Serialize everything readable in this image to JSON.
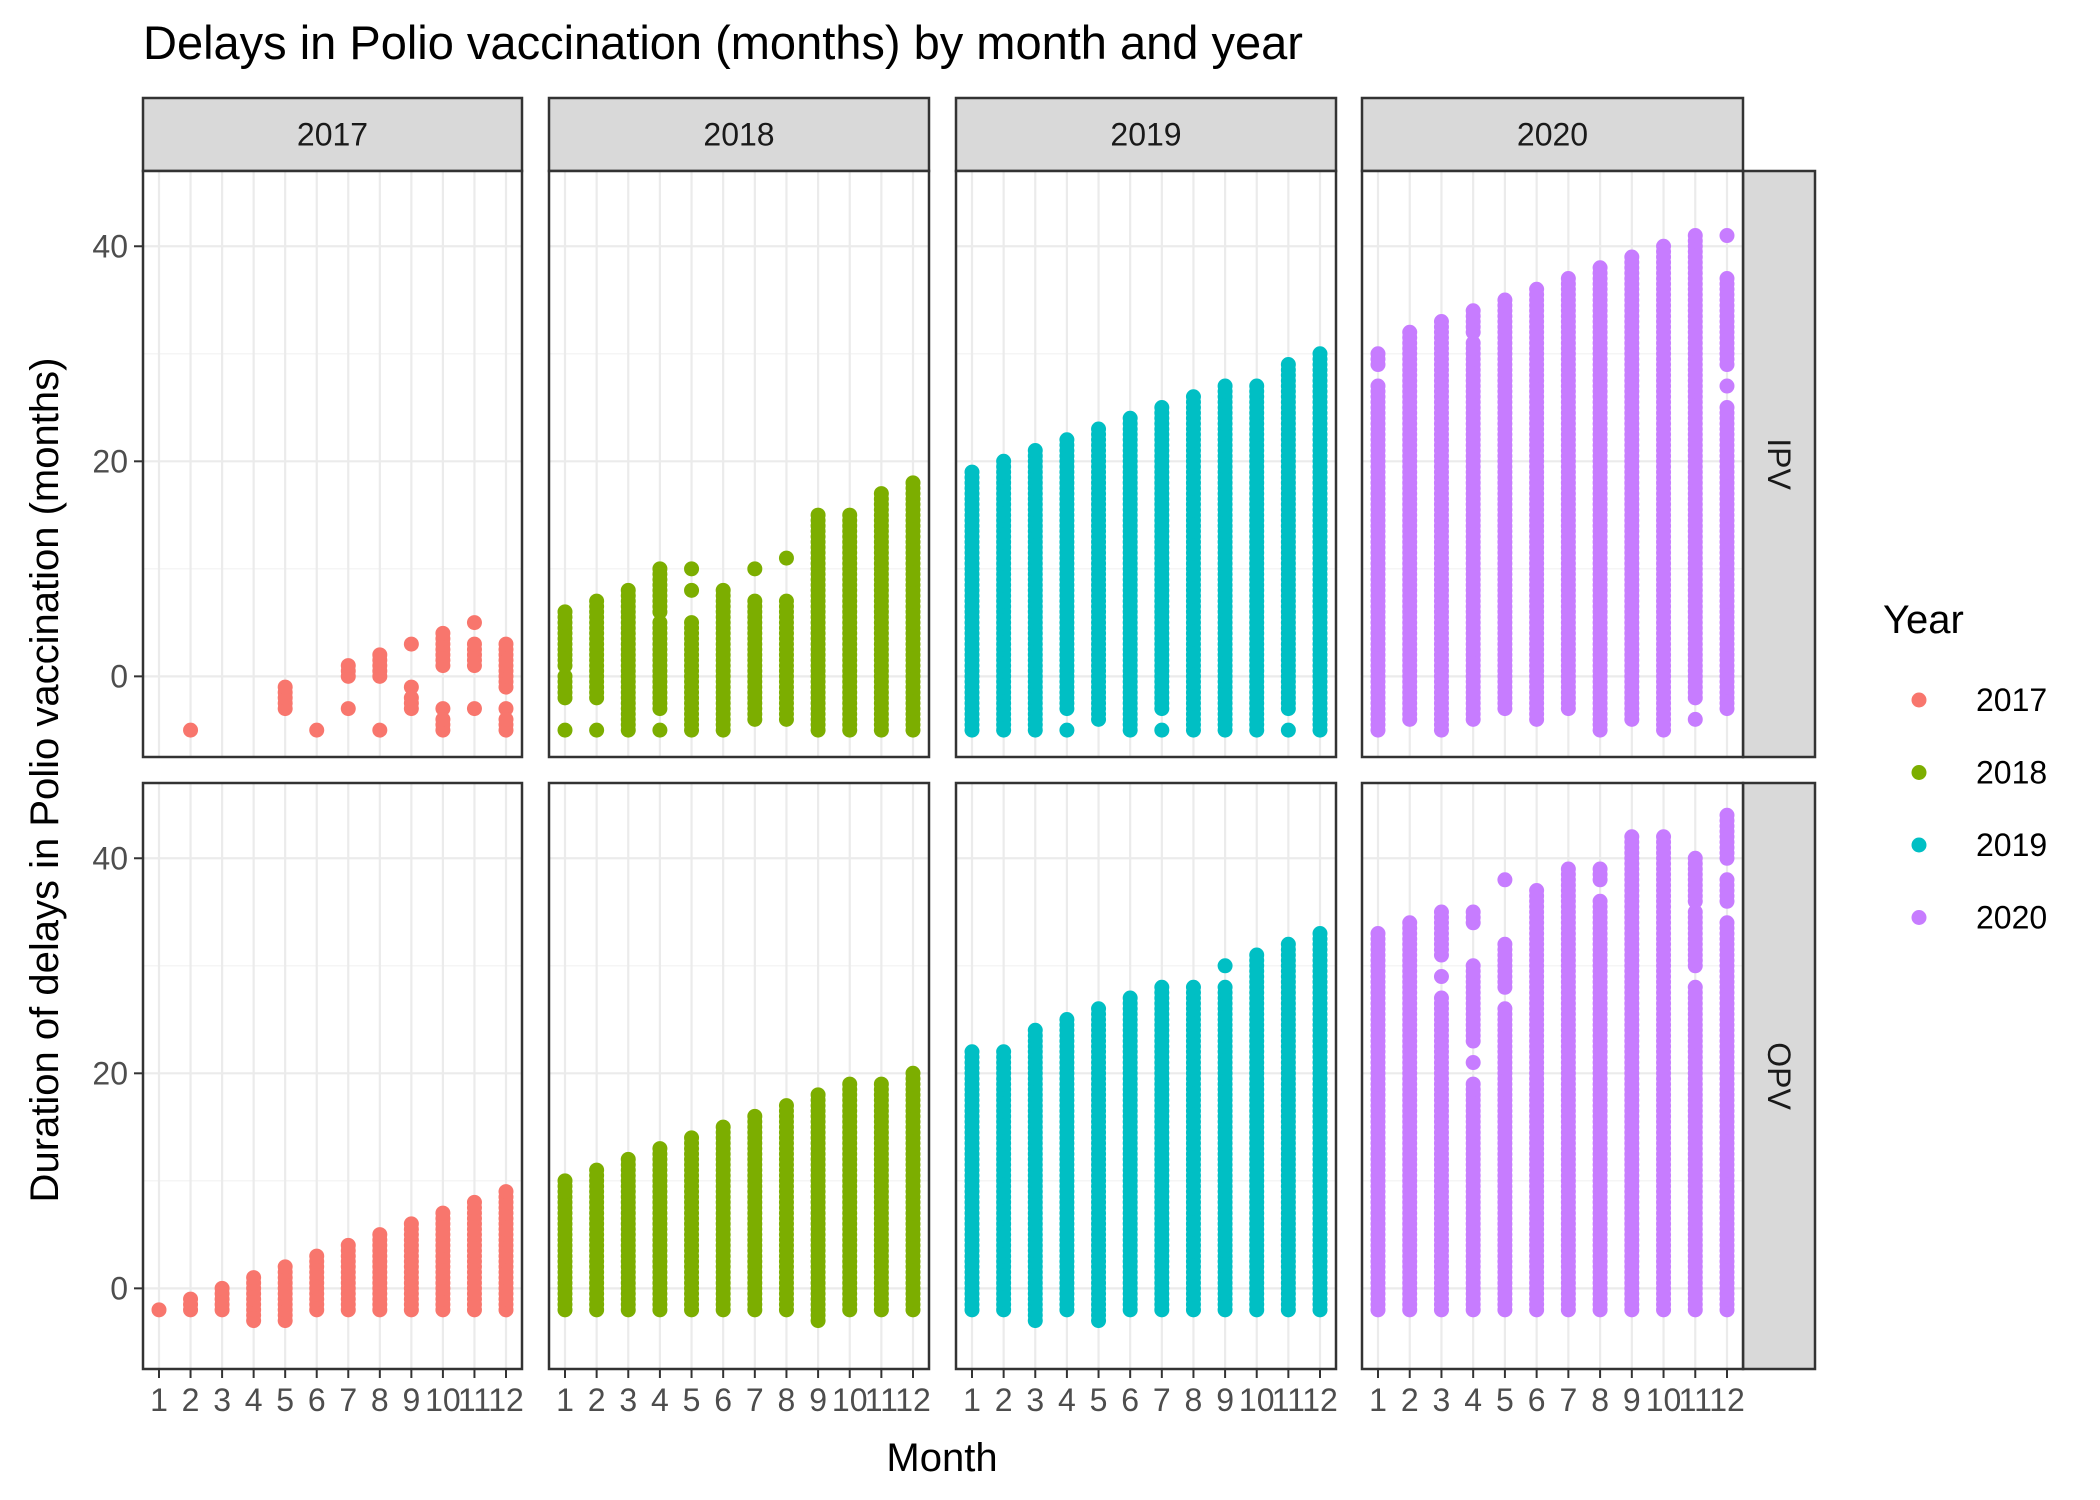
{
  "chart_data": {
    "type": "scatter",
    "title": "Delays in Polio vaccination (months) by month and year",
    "xlabel": "Month",
    "ylabel": "Duration of delays in Polio vaccination (months)",
    "x_ticks": [
      "1",
      "2",
      "3",
      "4",
      "5",
      "6",
      "7",
      "8",
      "9",
      "10",
      "11",
      "12"
    ],
    "y_ticks": [
      "0",
      "20",
      "40"
    ],
    "ylim": [
      -7.5,
      47
    ],
    "facet_columns": [
      "2017",
      "2018",
      "2019",
      "2020"
    ],
    "facet_rows": [
      "IPV",
      "OPV"
    ],
    "legend": {
      "title": "Year",
      "position": "right",
      "entries": [
        {
          "label": "2017",
          "color": "#F8766D"
        },
        {
          "label": "2018",
          "color": "#7CAE00"
        },
        {
          "label": "2019",
          "color": "#00BFC4"
        },
        {
          "label": "2020",
          "color": "#C77CFF"
        }
      ]
    },
    "panels": [
      {
        "row": "IPV",
        "col": "2017",
        "color": "#F8766D",
        "columns": [
          {
            "month": 2,
            "values": [
              -5
            ]
          },
          {
            "month": 5,
            "ranges": [
              [
                -3,
                -1
              ]
            ]
          },
          {
            "month": 6,
            "values": [
              -5
            ]
          },
          {
            "month": 7,
            "values": [
              -3
            ],
            "ranges": [
              [
                0,
                1
              ]
            ]
          },
          {
            "month": 8,
            "values": [
              -5
            ],
            "ranges": [
              [
                0,
                2
              ]
            ]
          },
          {
            "month": 9,
            "values": [
              -1,
              3
            ],
            "ranges": [
              [
                -3,
                -2
              ]
            ]
          },
          {
            "month": 10,
            "values": [
              -3
            ],
            "ranges": [
              [
                -5,
                -4
              ],
              [
                1,
                4
              ]
            ]
          },
          {
            "month": 11,
            "values": [
              -3,
              5
            ],
            "ranges": [
              [
                1,
                3
              ]
            ]
          },
          {
            "month": 12,
            "values": [
              -3
            ],
            "ranges": [
              [
                -5,
                -4
              ],
              [
                -1,
                3
              ]
            ]
          }
        ]
      },
      {
        "row": "IPV",
        "col": "2018",
        "color": "#7CAE00",
        "columns": [
          {
            "month": 1,
            "values": [
              -5
            ],
            "ranges": [
              [
                -2,
                0
              ],
              [
                1,
                6
              ]
            ]
          },
          {
            "month": 2,
            "values": [
              -5
            ],
            "ranges": [
              [
                -2,
                7
              ]
            ]
          },
          {
            "month": 3,
            "ranges": [
              [
                -5,
                8
              ]
            ]
          },
          {
            "month": 4,
            "values": [
              -5
            ],
            "ranges": [
              [
                -3,
                5
              ],
              [
                6,
                10
              ]
            ]
          },
          {
            "month": 5,
            "values": [
              8,
              10
            ],
            "ranges": [
              [
                -5,
                5
              ]
            ]
          },
          {
            "month": 6,
            "ranges": [
              [
                -5,
                8
              ]
            ]
          },
          {
            "month": 7,
            "values": [
              10
            ],
            "ranges": [
              [
                -4,
                7
              ]
            ]
          },
          {
            "month": 8,
            "values": [
              11
            ],
            "ranges": [
              [
                -4,
                7
              ]
            ]
          },
          {
            "month": 9,
            "ranges": [
              [
                -5,
                15
              ]
            ]
          },
          {
            "month": 10,
            "ranges": [
              [
                -5,
                15
              ]
            ]
          },
          {
            "month": 11,
            "ranges": [
              [
                -5,
                17
              ]
            ]
          },
          {
            "month": 12,
            "ranges": [
              [
                -5,
                18
              ]
            ]
          }
        ]
      },
      {
        "row": "IPV",
        "col": "2019",
        "color": "#00BFC4",
        "columns": [
          {
            "month": 1,
            "ranges": [
              [
                -5,
                19
              ]
            ]
          },
          {
            "month": 2,
            "ranges": [
              [
                -5,
                20
              ]
            ]
          },
          {
            "month": 3,
            "ranges": [
              [
                -5,
                21
              ]
            ]
          },
          {
            "month": 4,
            "values": [
              -5
            ],
            "ranges": [
              [
                -3,
                22
              ]
            ]
          },
          {
            "month": 5,
            "ranges": [
              [
                -4,
                23
              ]
            ]
          },
          {
            "month": 6,
            "ranges": [
              [
                -5,
                24
              ]
            ]
          },
          {
            "month": 7,
            "values": [
              -5
            ],
            "ranges": [
              [
                -3,
                25
              ]
            ]
          },
          {
            "month": 8,
            "ranges": [
              [
                -5,
                26
              ]
            ]
          },
          {
            "month": 9,
            "ranges": [
              [
                -5,
                27
              ]
            ]
          },
          {
            "month": 10,
            "ranges": [
              [
                -5,
                27
              ]
            ]
          },
          {
            "month": 11,
            "values": [
              -5
            ],
            "ranges": [
              [
                -3,
                29
              ]
            ]
          },
          {
            "month": 12,
            "ranges": [
              [
                -5,
                30
              ]
            ]
          }
        ]
      },
      {
        "row": "IPV",
        "col": "2020",
        "color": "#C77CFF",
        "columns": [
          {
            "month": 1,
            "ranges": [
              [
                -5,
                27
              ],
              [
                29,
                30
              ]
            ]
          },
          {
            "month": 2,
            "ranges": [
              [
                -4,
                32
              ]
            ]
          },
          {
            "month": 3,
            "ranges": [
              [
                -5,
                33
              ]
            ]
          },
          {
            "month": 4,
            "ranges": [
              [
                -4,
                31
              ],
              [
                32,
                34
              ]
            ]
          },
          {
            "month": 5,
            "ranges": [
              [
                -3,
                35
              ]
            ]
          },
          {
            "month": 6,
            "ranges": [
              [
                -4,
                36
              ]
            ]
          },
          {
            "month": 7,
            "ranges": [
              [
                -3,
                37
              ]
            ]
          },
          {
            "month": 8,
            "ranges": [
              [
                -5,
                38
              ]
            ]
          },
          {
            "month": 9,
            "ranges": [
              [
                -4,
                39
              ]
            ]
          },
          {
            "month": 10,
            "ranges": [
              [
                -5,
                40
              ]
            ]
          },
          {
            "month": 11,
            "values": [
              -4
            ],
            "ranges": [
              [
                -2,
                41
              ]
            ]
          },
          {
            "month": 12,
            "values": [
              27,
              41
            ],
            "ranges": [
              [
                -3,
                25
              ],
              [
                29,
                37
              ]
            ]
          }
        ]
      },
      {
        "row": "OPV",
        "col": "2017",
        "color": "#F8766D",
        "columns": [
          {
            "month": 1,
            "values": [
              -2
            ]
          },
          {
            "month": 2,
            "ranges": [
              [
                -2,
                -1
              ]
            ]
          },
          {
            "month": 3,
            "ranges": [
              [
                -2,
                0
              ]
            ]
          },
          {
            "month": 4,
            "ranges": [
              [
                -3,
                1
              ]
            ]
          },
          {
            "month": 5,
            "ranges": [
              [
                -3,
                2
              ]
            ]
          },
          {
            "month": 6,
            "ranges": [
              [
                -2,
                3
              ]
            ]
          },
          {
            "month": 7,
            "ranges": [
              [
                -2,
                4
              ]
            ]
          },
          {
            "month": 8,
            "ranges": [
              [
                -2,
                5
              ]
            ]
          },
          {
            "month": 9,
            "ranges": [
              [
                -2,
                6
              ]
            ]
          },
          {
            "month": 10,
            "ranges": [
              [
                -2,
                7
              ]
            ]
          },
          {
            "month": 11,
            "ranges": [
              [
                -2,
                8
              ]
            ]
          },
          {
            "month": 12,
            "ranges": [
              [
                -2,
                9
              ]
            ]
          }
        ]
      },
      {
        "row": "OPV",
        "col": "2018",
        "color": "#7CAE00",
        "columns": [
          {
            "month": 1,
            "ranges": [
              [
                -2,
                10
              ]
            ]
          },
          {
            "month": 2,
            "ranges": [
              [
                -2,
                11
              ]
            ]
          },
          {
            "month": 3,
            "ranges": [
              [
                -2,
                12
              ]
            ]
          },
          {
            "month": 4,
            "ranges": [
              [
                -2,
                13
              ]
            ]
          },
          {
            "month": 5,
            "ranges": [
              [
                -2,
                14
              ]
            ]
          },
          {
            "month": 6,
            "ranges": [
              [
                -2,
                15
              ]
            ]
          },
          {
            "month": 7,
            "ranges": [
              [
                -2,
                16
              ]
            ]
          },
          {
            "month": 8,
            "ranges": [
              [
                -2,
                17
              ]
            ]
          },
          {
            "month": 9,
            "ranges": [
              [
                -3,
                18
              ]
            ]
          },
          {
            "month": 10,
            "ranges": [
              [
                -2,
                19
              ]
            ]
          },
          {
            "month": 11,
            "ranges": [
              [
                -2,
                19
              ]
            ]
          },
          {
            "month": 12,
            "ranges": [
              [
                -2,
                20
              ]
            ]
          }
        ]
      },
      {
        "row": "OPV",
        "col": "2019",
        "color": "#00BFC4",
        "columns": [
          {
            "month": 1,
            "ranges": [
              [
                -2,
                22
              ]
            ]
          },
          {
            "month": 2,
            "ranges": [
              [
                -2,
                22
              ]
            ]
          },
          {
            "month": 3,
            "ranges": [
              [
                -3,
                24
              ]
            ]
          },
          {
            "month": 4,
            "ranges": [
              [
                -2,
                25
              ]
            ]
          },
          {
            "month": 5,
            "ranges": [
              [
                -3,
                26
              ]
            ]
          },
          {
            "month": 6,
            "ranges": [
              [
                -2,
                27
              ]
            ]
          },
          {
            "month": 7,
            "ranges": [
              [
                -2,
                28
              ]
            ]
          },
          {
            "month": 8,
            "ranges": [
              [
                -2,
                28
              ]
            ]
          },
          {
            "month": 9,
            "values": [
              30
            ],
            "ranges": [
              [
                -2,
                28
              ]
            ]
          },
          {
            "month": 10,
            "ranges": [
              [
                -2,
                31
              ]
            ]
          },
          {
            "month": 11,
            "ranges": [
              [
                -2,
                32
              ]
            ]
          },
          {
            "month": 12,
            "ranges": [
              [
                -2,
                33
              ]
            ]
          }
        ]
      },
      {
        "row": "OPV",
        "col": "2020",
        "color": "#C77CFF",
        "columns": [
          {
            "month": 1,
            "ranges": [
              [
                -2,
                33
              ]
            ]
          },
          {
            "month": 2,
            "ranges": [
              [
                -2,
                34
              ]
            ]
          },
          {
            "month": 3,
            "values": [
              29
            ],
            "ranges": [
              [
                -2,
                27
              ],
              [
                31,
                35
              ]
            ]
          },
          {
            "month": 4,
            "values": [
              21
            ],
            "ranges": [
              [
                -2,
                19
              ],
              [
                23,
                30
              ],
              [
                34,
                35
              ]
            ]
          },
          {
            "month": 5,
            "values": [
              38
            ],
            "ranges": [
              [
                -2,
                26
              ],
              [
                28,
                32
              ]
            ]
          },
          {
            "month": 6,
            "ranges": [
              [
                -2,
                37
              ]
            ]
          },
          {
            "month": 7,
            "ranges": [
              [
                -2,
                39
              ]
            ]
          },
          {
            "month": 8,
            "ranges": [
              [
                -2,
                36
              ],
              [
                38,
                39
              ]
            ]
          },
          {
            "month": 9,
            "ranges": [
              [
                -2,
                42
              ]
            ]
          },
          {
            "month": 10,
            "ranges": [
              [
                -2,
                42
              ]
            ]
          },
          {
            "month": 11,
            "ranges": [
              [
                -2,
                28
              ],
              [
                30,
                35
              ],
              [
                36,
                40
              ]
            ]
          },
          {
            "month": 12,
            "ranges": [
              [
                -2,
                34
              ],
              [
                36,
                38
              ],
              [
                40,
                44
              ]
            ]
          }
        ]
      }
    ]
  }
}
